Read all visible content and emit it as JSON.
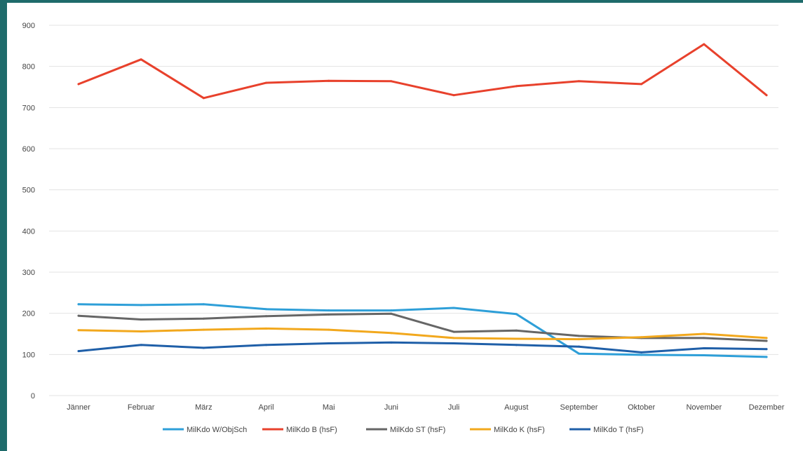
{
  "colors": {
    "background_border": "#1e6b6b",
    "plot_background": "#ffffff",
    "gridline": "#e3e3e3",
    "axis_text": "#444444"
  },
  "chart_data": {
    "type": "line",
    "title": "",
    "xlabel": "",
    "ylabel": "",
    "categories": [
      "Jänner",
      "Februar",
      "März",
      "April",
      "Mai",
      "Juni",
      "Juli",
      "August",
      "September",
      "Oktober",
      "November",
      "Dezember"
    ],
    "ylim": [
      0,
      900
    ],
    "yticks": [
      0,
      100,
      200,
      300,
      400,
      500,
      600,
      700,
      800,
      900
    ],
    "grid": true,
    "legend_position": "bottom",
    "series": [
      {
        "name": "MilKdo W/ObjSch",
        "color": "#2e9fd8",
        "values": [
          222,
          220,
          222,
          210,
          207,
          207,
          213,
          198,
          102,
          99,
          98,
          94
        ]
      },
      {
        "name": "MilKdo B (hsF)",
        "color": "#e8412c",
        "values": [
          757,
          817,
          723,
          760,
          765,
          764,
          730,
          752,
          764,
          757,
          854,
          730
        ]
      },
      {
        "name": "MilKdo ST (hsF)",
        "color": "#666666",
        "values": [
          194,
          185,
          187,
          193,
          197,
          199,
          155,
          158,
          145,
          140,
          140,
          133
        ]
      },
      {
        "name": "MilKdo K (hsF)",
        "color": "#f2a81d",
        "values": [
          159,
          156,
          160,
          163,
          160,
          152,
          140,
          138,
          137,
          142,
          150,
          140
        ]
      },
      {
        "name": "MilKdo T (hsF)",
        "color": "#1f5fa8",
        "values": [
          108,
          123,
          116,
          123,
          127,
          129,
          127,
          123,
          119,
          105,
          115,
          113
        ]
      }
    ]
  }
}
